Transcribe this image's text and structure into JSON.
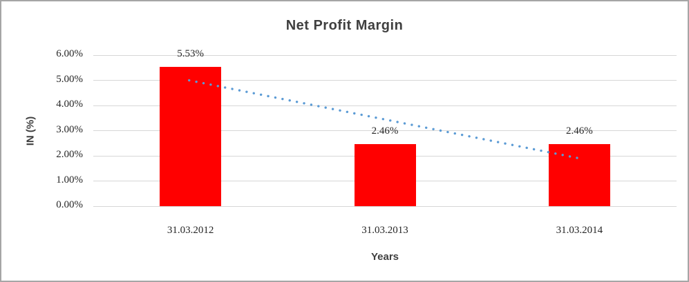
{
  "chart_data": {
    "type": "bar",
    "title": "Net Profit Margin",
    "xlabel": "Years",
    "ylabel": "IN (%)",
    "categories": [
      "31.03.2012",
      "31.03.2013",
      "31.03.2014"
    ],
    "values": [
      5.53,
      2.46,
      2.46
    ],
    "data_labels": [
      "5.53%",
      "2.46%",
      "2.46%"
    ],
    "y_ticks": [
      "6.00%",
      "5.00%",
      "4.00%",
      "3.00%",
      "2.00%",
      "1.00%",
      "0.00%"
    ],
    "ylim": [
      0,
      6
    ],
    "grid": true,
    "legend": "none",
    "trendline": {
      "type": "linear",
      "style": "dotted",
      "start_value": 5.0,
      "end_value": 1.9
    }
  },
  "colors": {
    "bar": "#ff0000",
    "trendline": "#5b9bd5",
    "gridline": "#d6d6d6",
    "tick_text": "#262626",
    "title_text": "#3f3f3f",
    "border": "#a6a6a6",
    "background": "#ffffff"
  }
}
